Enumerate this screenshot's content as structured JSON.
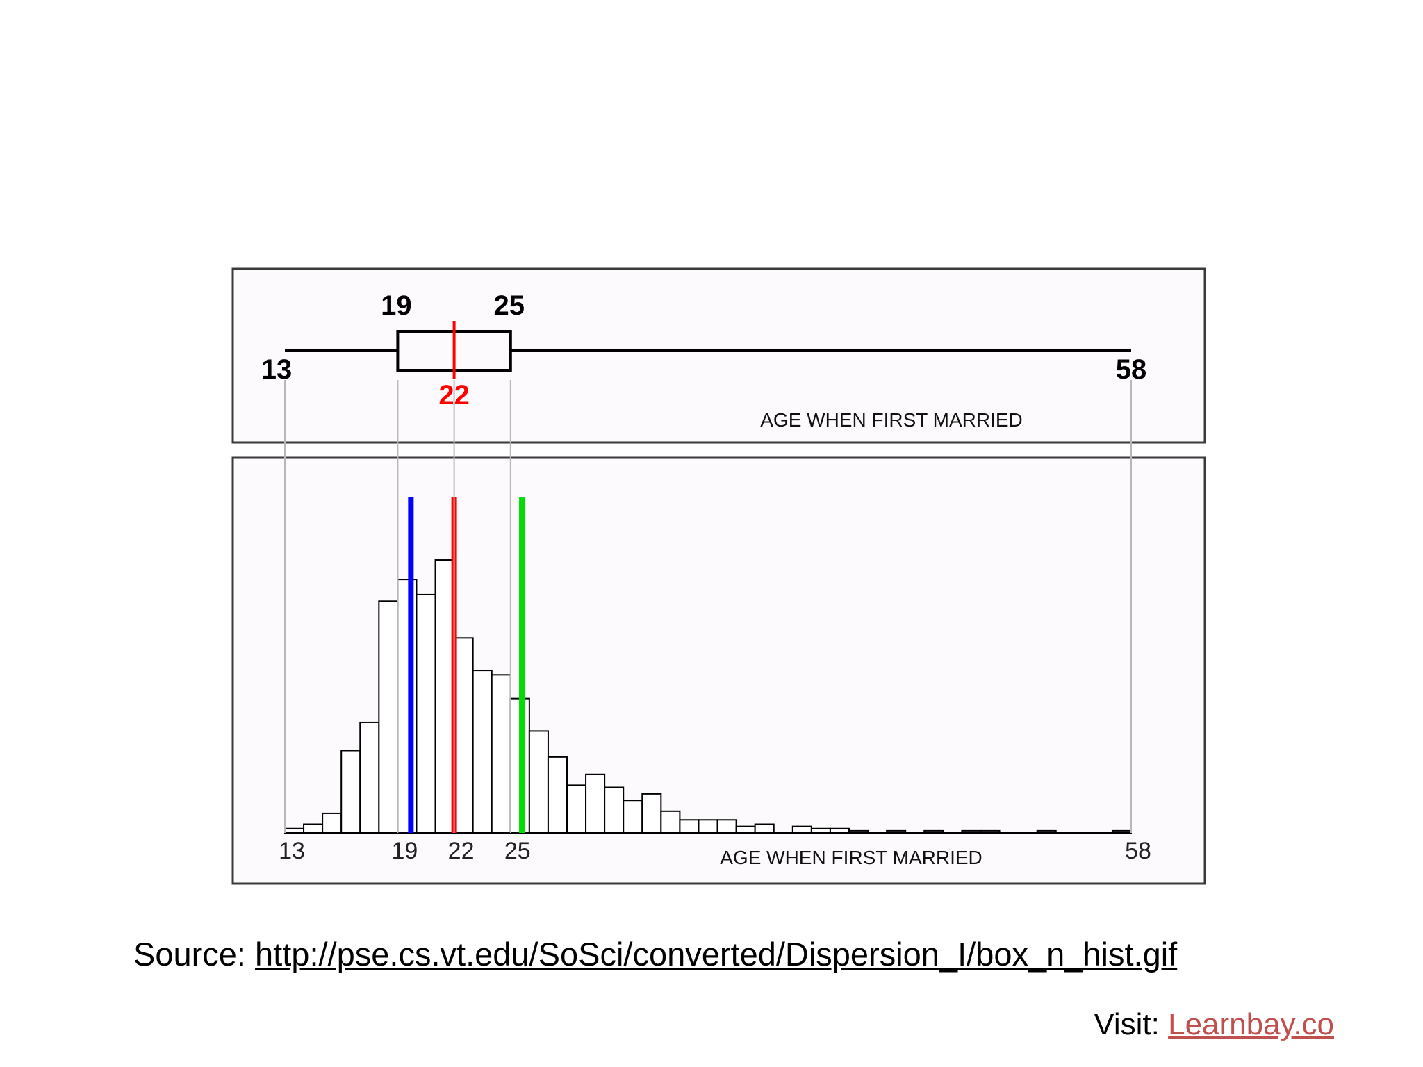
{
  "chart_data": [
    {
      "type": "box",
      "title": "",
      "xlabel": "AGE WHEN FIRST MARRIED",
      "min": 13,
      "q1": 19,
      "median": 22,
      "q3": 25,
      "max": 58,
      "labels": {
        "min": "13",
        "q1": "19",
        "median": "22",
        "q3": "25",
        "max": "58"
      },
      "colors": {
        "median": "#ff0000",
        "box": "#000000"
      }
    },
    {
      "type": "bar",
      "title": "",
      "xlabel": "AGE WHEN FIRST MARRIED",
      "ylabel": "",
      "x_range": [
        13,
        58
      ],
      "bin_width": 1,
      "bin_starts": [
        13,
        14,
        15,
        16,
        17,
        18,
        19,
        20,
        21,
        22,
        23,
        24,
        25,
        26,
        27,
        28,
        29,
        30,
        31,
        32,
        33,
        34,
        35,
        36,
        37,
        38,
        39,
        40,
        41,
        42,
        43,
        44,
        45,
        46,
        47,
        48,
        49,
        50,
        51,
        52,
        53,
        54,
        55,
        56,
        57
      ],
      "values": [
        2,
        4,
        9,
        38,
        51,
        107,
        117,
        110,
        126,
        90,
        75,
        73,
        62,
        47,
        35,
        22,
        27,
        21,
        15,
        18,
        10,
        6,
        6,
        6,
        3,
        4,
        0,
        3,
        2,
        2,
        1,
        0,
        1,
        0,
        1,
        0,
        1,
        1,
        0,
        0,
        1,
        0,
        0,
        0,
        1
      ],
      "ylim": [
        0,
        160
      ],
      "ticks": [
        "13",
        "19",
        "22",
        "25",
        "58"
      ],
      "tick_values": [
        13,
        19,
        22,
        25,
        58
      ],
      "reference_lines": [
        {
          "x": 19.7,
          "color": "#0000ff"
        },
        {
          "x": 22,
          "color": "#ff0000"
        },
        {
          "x": 25.6,
          "color": "#00dd00"
        }
      ],
      "grid": false
    }
  ],
  "source": {
    "prefix": "Source: ",
    "url_text": "http://pse.cs.vt.edu/SoSci/converted/Dispersion_I/box_n_hist.gif"
  },
  "visit": {
    "prefix": "Visit: ",
    "link_text": "Learnbay.co",
    "link_color": "#c0504d"
  }
}
